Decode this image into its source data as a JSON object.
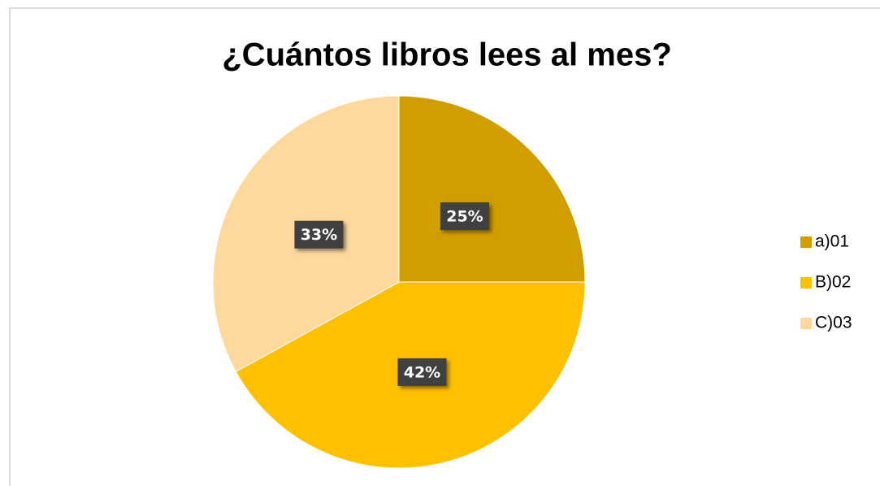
{
  "chart_data": {
    "type": "pie",
    "title": "¿Cuántos libros lees al mes?",
    "categories": [
      "a)01",
      "B)02",
      "C)03"
    ],
    "values": [
      25,
      42,
      33
    ],
    "value_labels": [
      "25%",
      "42%",
      "33%"
    ],
    "colors": [
      "#D19E00",
      "#FFC000",
      "#FFD89E"
    ],
    "legend": "right"
  }
}
